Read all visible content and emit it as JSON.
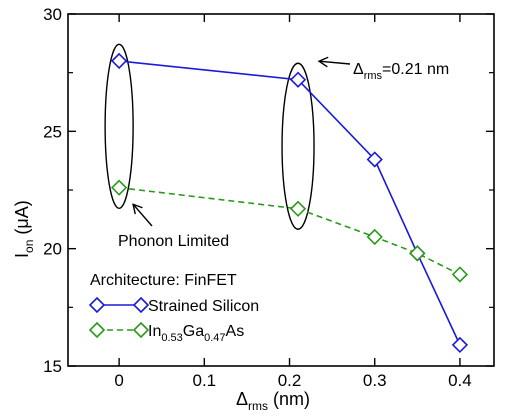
{
  "chart_data": {
    "type": "line",
    "xlabel": {
      "base": "Δ",
      "sub": "rms",
      "tail": " (nm)"
    },
    "ylabel": {
      "base": "I",
      "sub": "on",
      "tail": " (μA)"
    },
    "xlim": [
      -0.06,
      0.44
    ],
    "ylim": [
      15,
      30
    ],
    "xticks": [
      0,
      0.1,
      0.2,
      0.3,
      0.4
    ],
    "xtick_labels": [
      "0",
      "0.1",
      "0.2",
      "0.3",
      "0.4"
    ],
    "yticks": [
      15,
      20,
      25,
      30
    ],
    "ytick_labels": [
      "15",
      "20",
      "25",
      "30"
    ],
    "grid": false,
    "legend": {
      "title": "Architecture: FinFET",
      "placement": "bottom-left"
    },
    "series": [
      {
        "name": "Strained Silicon",
        "color": "#1a1adb",
        "line_style": "solid",
        "marker": "diamond",
        "x": [
          0,
          0.21,
          0.3,
          0.35,
          0.4
        ],
        "y": [
          28.0,
          27.2,
          23.8,
          19.8,
          15.9
        ]
      },
      {
        "name": "In0.53Ga0.47As",
        "name_parts": [
          {
            "t": "In"
          },
          {
            "t": "0.53",
            "sub": true
          },
          {
            "t": "Ga"
          },
          {
            "t": "0.47",
            "sub": true
          },
          {
            "t": "As"
          }
        ],
        "color": "#2a9a1a",
        "line_style": "dashed",
        "marker": "diamond",
        "x": [
          0,
          0.21,
          0.3,
          0.35,
          0.4
        ],
        "y": [
          22.6,
          21.7,
          20.5,
          19.8,
          18.9
        ]
      }
    ],
    "annotations": {
      "phonon_limited": "Phonon Limited",
      "delta_rms": {
        "base": "Δ",
        "sub": "rms",
        "tail": "=0.21 nm"
      }
    }
  }
}
